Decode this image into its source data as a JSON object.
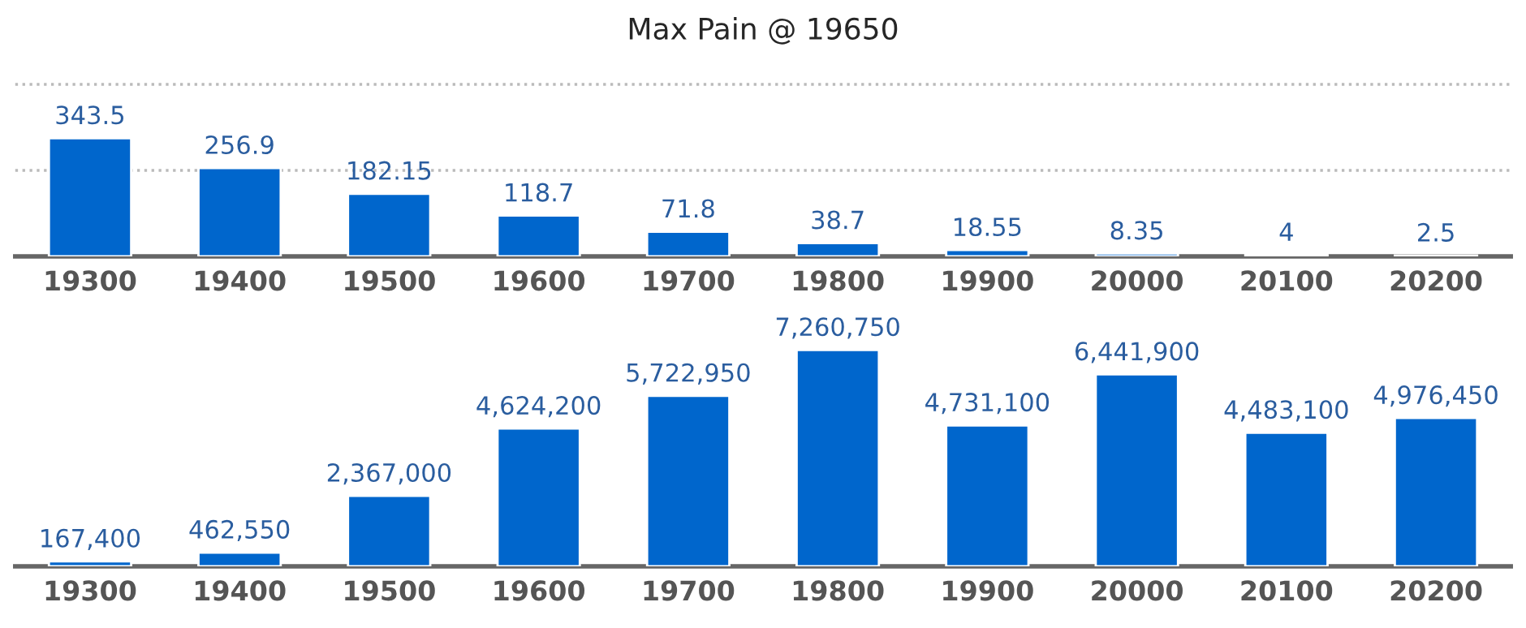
{
  "chart_data": [
    {
      "type": "bar",
      "title": "Max Pain @ 19650",
      "categories": [
        "19300",
        "19400",
        "19500",
        "19600",
        "19700",
        "19800",
        "19900",
        "20000",
        "20100",
        "20200"
      ],
      "values": [
        343.5,
        256.9,
        182.15,
        118.7,
        71.8,
        38.7,
        18.55,
        8.35,
        4,
        2.5
      ],
      "value_labels": [
        "343.5",
        "256.9",
        "182.15",
        "118.7",
        "71.8",
        "38.7",
        "18.55",
        "8.35",
        "4",
        "2.5"
      ],
      "color": "#0066cc",
      "ylim": [
        0,
        500
      ],
      "yticks": [
        {
          "value": 0,
          "label": null
        },
        {
          "value": 250,
          "label": null
        },
        {
          "value": 500,
          "label": null
        }
      ],
      "grid": "y",
      "tick_labels": "x"
    },
    {
      "type": "bar",
      "categories": [
        "19300",
        "19400",
        "19500",
        "19600",
        "19700",
        "19800",
        "19900",
        "20000",
        "20100",
        "20200"
      ],
      "values": [
        167400,
        462550,
        2367000,
        4624200,
        5722950,
        7260750,
        4731100,
        6441900,
        4483100,
        4976450
      ],
      "value_labels": [
        "167,400",
        "462,550",
        "2,367,000",
        "4,624,200",
        "5,722,950",
        "7,260,750",
        "4,731,100",
        "6,441,900",
        "4,483,100",
        "4,976,450"
      ],
      "color": "#0066cc",
      "tick_labels": "x"
    }
  ]
}
